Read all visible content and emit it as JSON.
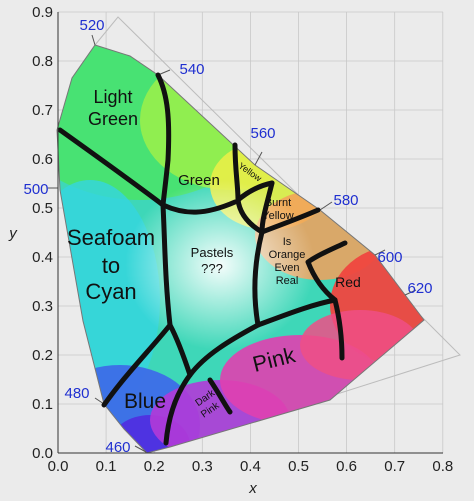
{
  "axes": {
    "x_label": "x",
    "y_label": "y",
    "x_ticks": [
      "0.0",
      "0.1",
      "0.2",
      "0.3",
      "0.4",
      "0.5",
      "0.6",
      "0.7",
      "0.8"
    ],
    "y_ticks": [
      "0.0",
      "0.1",
      "0.2",
      "0.3",
      "0.4",
      "0.5",
      "0.6",
      "0.7",
      "0.8",
      "0.9"
    ]
  },
  "wavelengths": [
    "460",
    "480",
    "500",
    "520",
    "540",
    "560",
    "580",
    "600",
    "620"
  ],
  "regions": {
    "light_green_1": "Light",
    "light_green_2": "Green",
    "green": "Green",
    "yellow": "Yellow",
    "burnt_yellow_1": "Burnt",
    "burnt_yellow_2": "Yellow",
    "seafoam_1": "Seafoam",
    "seafoam_2": "to",
    "seafoam_3": "Cyan",
    "pastels_1": "Pastels",
    "pastels_2": "???",
    "orange_1": "Is",
    "orange_2": "Orange",
    "orange_3": "Even",
    "orange_4": "Real",
    "red": "Red",
    "pink": "Pink",
    "blue": "Blue",
    "dark_pink_1": "Dark",
    "dark_pink_2": "Pink"
  },
  "colors": {
    "boundary_lines": "#111111",
    "wavelength_labels": "#1f2fd0",
    "grid": "#c8c8c8",
    "background": "#ebebeb"
  }
}
